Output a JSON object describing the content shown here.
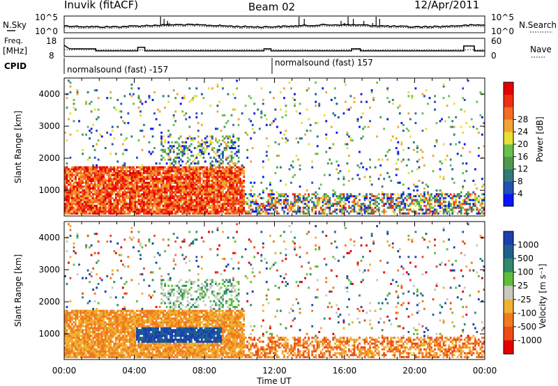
{
  "header": {
    "station": "Inuvik (fitACF)",
    "beam": "Beam 02",
    "date": "12/Apr/2011"
  },
  "noise_panel": {
    "left_label": "N.Sky",
    "left_ticks": [
      "10^5",
      "10^0"
    ],
    "right_ticks": [
      "10^5",
      "10^0"
    ],
    "right_label": "N.Search"
  },
  "freq_panel": {
    "left_label_1": "Freq.",
    "left_label_2": "[MHz]",
    "left_ticks": [
      "18",
      "8"
    ],
    "right_ticks": [
      "60",
      "0"
    ],
    "right_label": "Nave"
  },
  "cpid": {
    "label": "CPID",
    "segments": [
      "normalsound (fast) -157",
      "normalsound (fast) 157"
    ]
  },
  "chart_data": [
    {
      "type": "heatmap",
      "name": "power",
      "ylabel": "Slant Range [km]",
      "y_ticks": [
        "1000",
        "2000",
        "3000",
        "4000"
      ],
      "ylim": [
        200,
        4500
      ],
      "xlim": [
        0,
        24
      ],
      "colorbar": {
        "label": "Power [dB]",
        "ticks": [
          "4",
          "8",
          "12",
          "16",
          "20",
          "24",
          "28"
        ],
        "colors": [
          "#0a14ff",
          "#1f52b4",
          "#2f7a78",
          "#4d9a4f",
          "#66c24a",
          "#e6e034",
          "#f2a533",
          "#f56b22",
          "#ef2e12",
          "#e60000"
        ]
      }
    },
    {
      "type": "heatmap",
      "name": "velocity",
      "ylabel": "Slant Range [km]",
      "y_ticks": [
        "1000",
        "2000",
        "3000",
        "4000"
      ],
      "ylim": [
        200,
        4500
      ],
      "xlim": [
        0,
        24
      ],
      "xlabel": "Time UT",
      "x_ticks": [
        "00:00",
        "04:00",
        "08:00",
        "12:00",
        "16:00",
        "20:00",
        "00:00"
      ],
      "colorbar": {
        "label": "Velocity [m s⁻¹]",
        "ticks": [
          "1000",
          "500",
          "100",
          "25",
          "-25",
          "-100",
          "-500",
          "-1000"
        ],
        "colors": [
          "#1a3fb0",
          "#1e5f8f",
          "#2f8a6a",
          "#5cbf3a",
          "#c8c8c0",
          "#f0b030",
          "#f07a20",
          "#ee4a18",
          "#e60000"
        ]
      }
    }
  ]
}
